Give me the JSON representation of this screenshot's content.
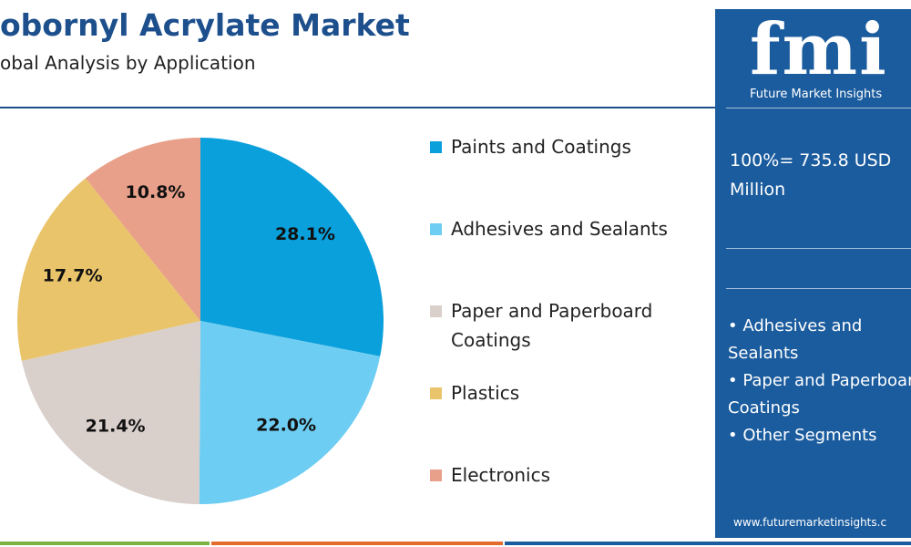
{
  "chart_data": {
    "type": "pie",
    "title": "obornyl Acrylate Market",
    "subtitle": "obal Analysis by Application",
    "categories": [
      "Paints and Coatings",
      "Adhesives and Sealants",
      "Paper and Paperboard Coatings",
      "Plastics",
      "Electronics"
    ],
    "values": [
      28.1,
      22,
      21.4,
      17.7,
      10.8
    ],
    "value_labels": [
      "28.1%",
      "22.0%",
      "21.4%",
      "17.7%",
      "10.8%"
    ],
    "colors": [
      "#0aa0dc",
      "#6ecdf2",
      "#d9cfcb",
      "#e9c46a",
      "#e8a08a"
    ]
  },
  "panel": {
    "logo": "fmi",
    "brand": "Future Market Insights",
    "note": "100%= 735.8 USD Million",
    "bullets": [
      "• Adhesives and Sealants",
      "• Paper and Paperboard Coatings",
      "• Other Segments"
    ],
    "url": "www.futuremarketinsights.c"
  }
}
